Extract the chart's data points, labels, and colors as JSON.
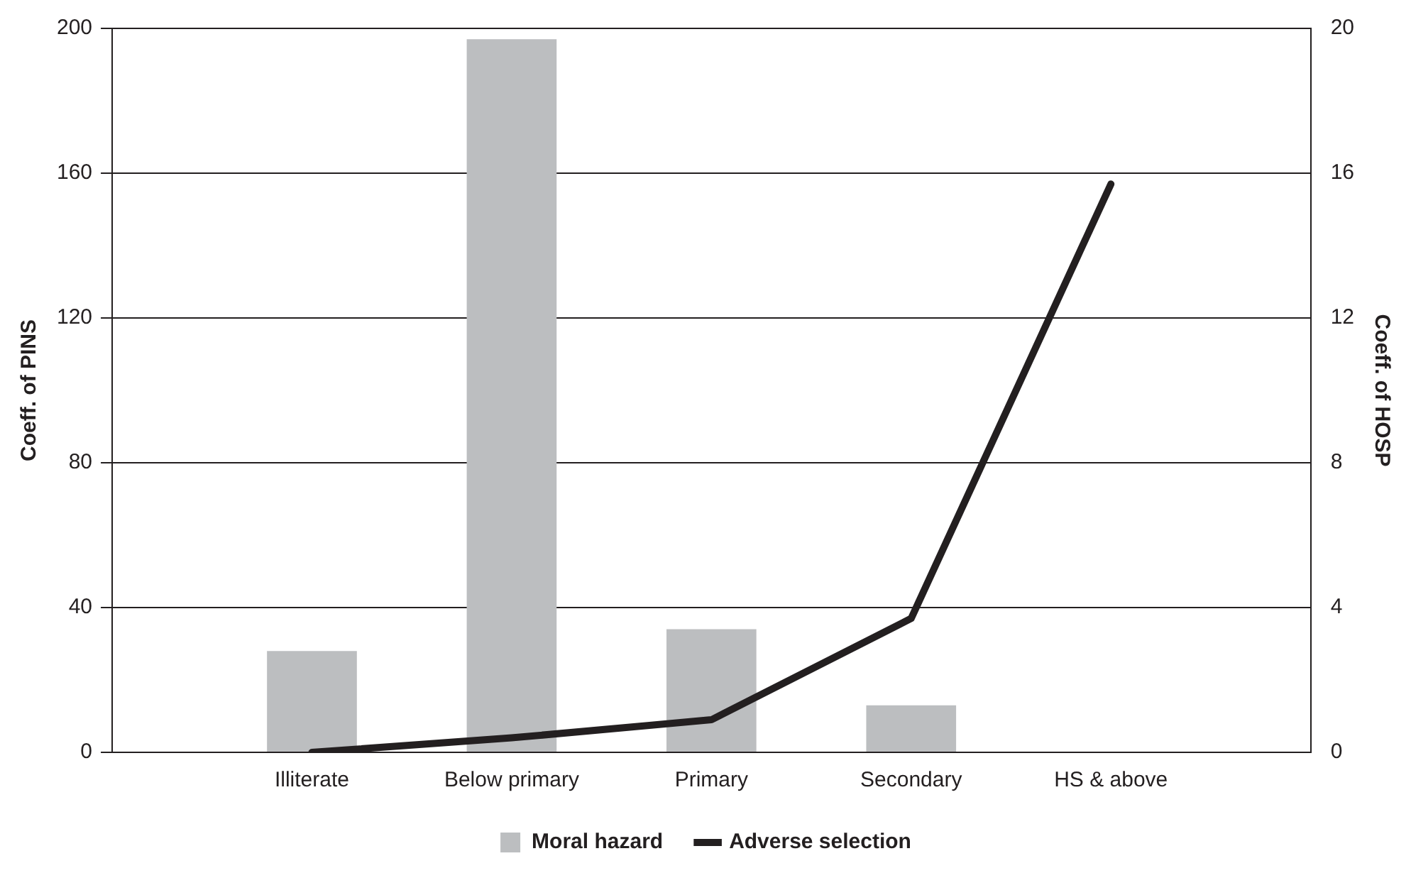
{
  "chart_data": {
    "type": "bar",
    "categories": [
      null,
      "Illiterate",
      "Below primary",
      "Primary",
      "Secondary",
      "HS & above",
      null
    ],
    "series": [
      {
        "name": "Moral hazard",
        "color": "#bcbec0",
        "values": [
          null,
          28,
          197,
          34,
          13,
          null,
          null
        ]
      },
      {
        "name": "Adverse selection",
        "type": "line",
        "axis": "y2",
        "color": "#231f20",
        "values": [
          null,
          0,
          0.4,
          0.9,
          3.7,
          15.7,
          null
        ]
      }
    ],
    "ylabel": "Coeff. of PINS",
    "y2label": "Coeff. of HOSP",
    "ylim": [
      0,
      200
    ],
    "yticks": [
      0,
      40,
      80,
      120,
      160,
      200
    ],
    "y2lim": [
      0,
      20
    ],
    "y2ticks": [
      0,
      4,
      8,
      12,
      16,
      20
    ],
    "grid": "y",
    "legend": "bottom",
    "marker": "none",
    "line_style": "solid"
  }
}
